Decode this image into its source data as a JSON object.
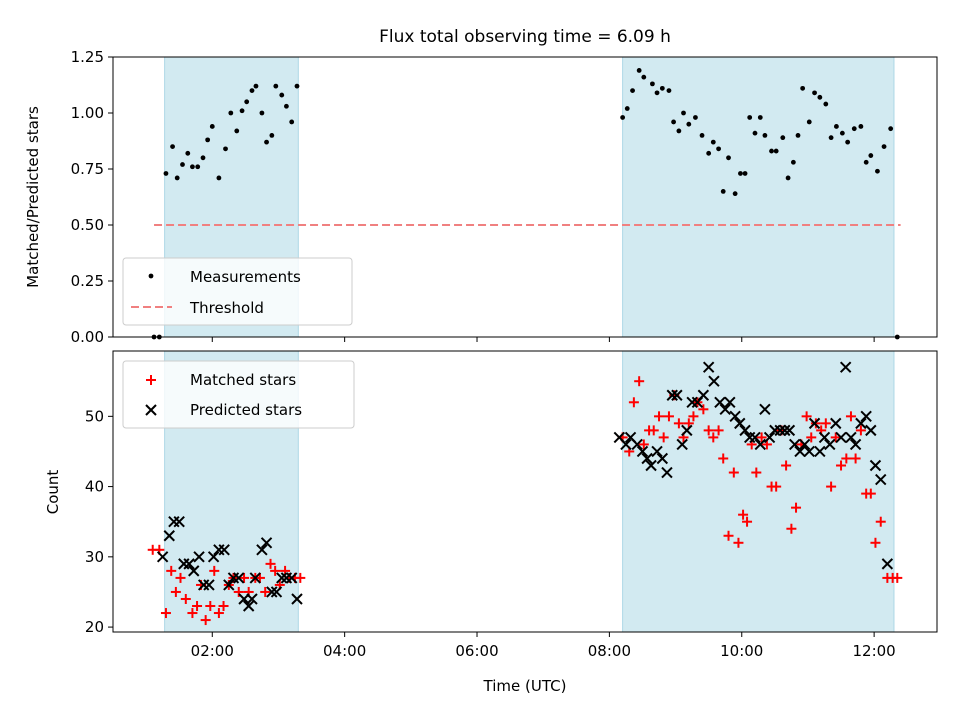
{
  "title": "Flux total observing time = 6.09 h",
  "colors": {
    "shade": "#add8e6",
    "measurement": "#000000",
    "threshold": "#f08080",
    "matched": "#ff0000",
    "predicted": "#000000"
  },
  "chart_data": [
    {
      "type": "scatter",
      "ylabel": "Matched/Predicted stars",
      "xlim": [
        0.5,
        12.95
      ],
      "ylim": [
        0,
        1.25
      ],
      "yticks": [
        0,
        0.25,
        0.5,
        0.75,
        1.0,
        1.25
      ],
      "ytick_labels": [
        "0.00",
        "0.25",
        "0.50",
        "0.75",
        "1.00",
        "1.25"
      ],
      "xticks": [
        2,
        4,
        6,
        8,
        10,
        12
      ],
      "shaded_intervals": [
        [
          1.28,
          3.3
        ],
        [
          8.2,
          12.3
        ]
      ],
      "threshold": {
        "value": 0.5,
        "x_range": [
          1.12,
          12.4
        ]
      },
      "legend": {
        "location": "lower-left",
        "entries": [
          "Measurements",
          "Threshold"
        ]
      },
      "series": [
        {
          "name": "Measurements",
          "marker": "dot",
          "points": [
            [
              1.12,
              0.0
            ],
            [
              1.2,
              0.0
            ],
            [
              1.3,
              0.73
            ],
            [
              1.4,
              0.85
            ],
            [
              1.47,
              0.71
            ],
            [
              1.55,
              0.77
            ],
            [
              1.63,
              0.82
            ],
            [
              1.7,
              0.76
            ],
            [
              1.78,
              0.76
            ],
            [
              1.86,
              0.8
            ],
            [
              1.93,
              0.88
            ],
            [
              2.0,
              0.94
            ],
            [
              2.1,
              0.71
            ],
            [
              2.2,
              0.84
            ],
            [
              2.28,
              1.0
            ],
            [
              2.37,
              0.92
            ],
            [
              2.45,
              1.01
            ],
            [
              2.52,
              1.05
            ],
            [
              2.6,
              1.1
            ],
            [
              2.66,
              1.12
            ],
            [
              2.75,
              1.0
            ],
            [
              2.82,
              0.87
            ],
            [
              2.9,
              0.9
            ],
            [
              2.96,
              1.12
            ],
            [
              3.05,
              1.08
            ],
            [
              3.12,
              1.03
            ],
            [
              3.2,
              0.96
            ],
            [
              3.28,
              1.12
            ],
            [
              8.2,
              0.98
            ],
            [
              8.27,
              1.02
            ],
            [
              8.35,
              1.1
            ],
            [
              8.45,
              1.19
            ],
            [
              8.52,
              1.16
            ],
            [
              8.65,
              1.13
            ],
            [
              8.72,
              1.09
            ],
            [
              8.8,
              1.11
            ],
            [
              8.9,
              1.1
            ],
            [
              8.97,
              0.96
            ],
            [
              9.05,
              0.92
            ],
            [
              9.12,
              1.0
            ],
            [
              9.2,
              0.95
            ],
            [
              9.3,
              0.98
            ],
            [
              9.4,
              0.9
            ],
            [
              9.5,
              0.82
            ],
            [
              9.57,
              0.87
            ],
            [
              9.65,
              0.84
            ],
            [
              9.72,
              0.65
            ],
            [
              9.8,
              0.8
            ],
            [
              9.9,
              0.64
            ],
            [
              9.98,
              0.73
            ],
            [
              10.05,
              0.73
            ],
            [
              10.12,
              0.98
            ],
            [
              10.2,
              0.91
            ],
            [
              10.28,
              0.98
            ],
            [
              10.35,
              0.9
            ],
            [
              10.45,
              0.83
            ],
            [
              10.52,
              0.83
            ],
            [
              10.62,
              0.89
            ],
            [
              10.7,
              0.71
            ],
            [
              10.78,
              0.78
            ],
            [
              10.85,
              0.9
            ],
            [
              10.92,
              1.11
            ],
            [
              11.02,
              0.96
            ],
            [
              11.1,
              1.09
            ],
            [
              11.18,
              1.07
            ],
            [
              11.27,
              1.04
            ],
            [
              11.35,
              0.89
            ],
            [
              11.43,
              0.94
            ],
            [
              11.52,
              0.91
            ],
            [
              11.6,
              0.87
            ],
            [
              11.7,
              0.93
            ],
            [
              11.8,
              0.94
            ],
            [
              11.88,
              0.78
            ],
            [
              11.95,
              0.81
            ],
            [
              12.05,
              0.74
            ],
            [
              12.15,
              0.85
            ],
            [
              12.25,
              0.93
            ],
            [
              12.35,
              0.0
            ]
          ]
        },
        {
          "name": "Threshold",
          "style": "dashed"
        }
      ]
    },
    {
      "type": "scatter",
      "xlabel": "Time (UTC)",
      "ylabel": "Count",
      "xlim": [
        0.5,
        12.95
      ],
      "ylim": [
        19.3,
        59.3
      ],
      "yticks": [
        20,
        30,
        40,
        50
      ],
      "ytick_labels": [
        "20",
        "30",
        "40",
        "50"
      ],
      "xticks": [
        2,
        4,
        6,
        8,
        10,
        12
      ],
      "xtick_labels": [
        "02:00",
        "04:00",
        "06:00",
        "08:00",
        "10:00",
        "12:00"
      ],
      "shaded_intervals": [
        [
          1.28,
          3.3
        ],
        [
          8.2,
          12.3
        ]
      ],
      "legend": {
        "location": "top-left",
        "entries": [
          "Matched stars",
          "Predicted stars"
        ]
      },
      "series": [
        {
          "name": "Matched stars",
          "marker": "plus",
          "points": [
            [
              1.1,
              31
            ],
            [
              1.2,
              31
            ],
            [
              1.3,
              22
            ],
            [
              1.38,
              28
            ],
            [
              1.45,
              25
            ],
            [
              1.52,
              27
            ],
            [
              1.6,
              24
            ],
            [
              1.7,
              22
            ],
            [
              1.77,
              23
            ],
            [
              1.83,
              26
            ],
            [
              1.9,
              21
            ],
            [
              1.97,
              23
            ],
            [
              2.03,
              28
            ],
            [
              2.1,
              22
            ],
            [
              2.17,
              23
            ],
            [
              2.25,
              26
            ],
            [
              2.32,
              27
            ],
            [
              2.4,
              25
            ],
            [
              2.48,
              27
            ],
            [
              2.55,
              25
            ],
            [
              2.65,
              27
            ],
            [
              2.72,
              27
            ],
            [
              2.8,
              25
            ],
            [
              2.88,
              29
            ],
            [
              2.95,
              28
            ],
            [
              3.02,
              26
            ],
            [
              3.1,
              28
            ],
            [
              3.17,
              27
            ],
            [
              3.25,
              27
            ],
            [
              3.33,
              27
            ],
            [
              8.2,
              47
            ],
            [
              8.3,
              45
            ],
            [
              8.37,
              52
            ],
            [
              8.45,
              55
            ],
            [
              8.52,
              46
            ],
            [
              8.6,
              48
            ],
            [
              8.67,
              48
            ],
            [
              8.75,
              50
            ],
            [
              8.82,
              47
            ],
            [
              8.9,
              50
            ],
            [
              8.98,
              53
            ],
            [
              9.05,
              49
            ],
            [
              9.12,
              47
            ],
            [
              9.2,
              49
            ],
            [
              9.27,
              50
            ],
            [
              9.33,
              52
            ],
            [
              9.42,
              51
            ],
            [
              9.5,
              48
            ],
            [
              9.57,
              47
            ],
            [
              9.65,
              48
            ],
            [
              9.72,
              44
            ],
            [
              9.8,
              33
            ],
            [
              9.88,
              42
            ],
            [
              9.95,
              32
            ],
            [
              10.02,
              36
            ],
            [
              10.08,
              35
            ],
            [
              10.15,
              46
            ],
            [
              10.22,
              42
            ],
            [
              10.3,
              47
            ],
            [
              10.38,
              46
            ],
            [
              10.45,
              40
            ],
            [
              10.52,
              40
            ],
            [
              10.6,
              48
            ],
            [
              10.67,
              43
            ],
            [
              10.75,
              34
            ],
            [
              10.82,
              37
            ],
            [
              10.9,
              46
            ],
            [
              10.98,
              50
            ],
            [
              11.05,
              47
            ],
            [
              11.12,
              49
            ],
            [
              11.2,
              48
            ],
            [
              11.27,
              49
            ],
            [
              11.35,
              40
            ],
            [
              11.42,
              47
            ],
            [
              11.5,
              43
            ],
            [
              11.58,
              44
            ],
            [
              11.65,
              50
            ],
            [
              11.72,
              44
            ],
            [
              11.8,
              48
            ],
            [
              11.88,
              39
            ],
            [
              11.95,
              39
            ],
            [
              12.02,
              32
            ],
            [
              12.1,
              35
            ],
            [
              12.2,
              27
            ],
            [
              12.28,
              27
            ],
            [
              12.35,
              27
            ]
          ]
        },
        {
          "name": "Predicted stars",
          "marker": "x",
          "points": [
            [
              1.25,
              30
            ],
            [
              1.35,
              33
            ],
            [
              1.42,
              35
            ],
            [
              1.5,
              35
            ],
            [
              1.57,
              29
            ],
            [
              1.65,
              29
            ],
            [
              1.72,
              28
            ],
            [
              1.8,
              30
            ],
            [
              1.87,
              26
            ],
            [
              1.95,
              26
            ],
            [
              2.02,
              30
            ],
            [
              2.1,
              31
            ],
            [
              2.18,
              31
            ],
            [
              2.25,
              26
            ],
            [
              2.32,
              27
            ],
            [
              2.4,
              27
            ],
            [
              2.48,
              24
            ],
            [
              2.55,
              23
            ],
            [
              2.6,
              24
            ],
            [
              2.65,
              27
            ],
            [
              2.75,
              31
            ],
            [
              2.82,
              32
            ],
            [
              2.9,
              25
            ],
            [
              2.97,
              25
            ],
            [
              3.05,
              27
            ],
            [
              3.12,
              27
            ],
            [
              3.2,
              27
            ],
            [
              3.28,
              24
            ],
            [
              8.15,
              47
            ],
            [
              8.25,
              46
            ],
            [
              8.32,
              47
            ],
            [
              8.42,
              46
            ],
            [
              8.5,
              45
            ],
            [
              8.57,
              44
            ],
            [
              8.63,
              43
            ],
            [
              8.72,
              45
            ],
            [
              8.8,
              44
            ],
            [
              8.87,
              42
            ],
            [
              8.95,
              53
            ],
            [
              9.02,
              53
            ],
            [
              9.1,
              46
            ],
            [
              9.17,
              48
            ],
            [
              9.25,
              52
            ],
            [
              9.33,
              52
            ],
            [
              9.42,
              53
            ],
            [
              9.5,
              57
            ],
            [
              9.58,
              55
            ],
            [
              9.67,
              52
            ],
            [
              9.75,
              51
            ],
            [
              9.82,
              52
            ],
            [
              9.9,
              50
            ],
            [
              9.97,
              49
            ],
            [
              10.05,
              48
            ],
            [
              10.12,
              47
            ],
            [
              10.2,
              47
            ],
            [
              10.28,
              46
            ],
            [
              10.35,
              51
            ],
            [
              10.42,
              47
            ],
            [
              10.5,
              48
            ],
            [
              10.58,
              48
            ],
            [
              10.65,
              48
            ],
            [
              10.72,
              48
            ],
            [
              10.8,
              46
            ],
            [
              10.88,
              45
            ],
            [
              10.95,
              46
            ],
            [
              11.02,
              45
            ],
            [
              11.1,
              49
            ],
            [
              11.18,
              45
            ],
            [
              11.25,
              47
            ],
            [
              11.33,
              46
            ],
            [
              11.42,
              49
            ],
            [
              11.5,
              47
            ],
            [
              11.57,
              57
            ],
            [
              11.65,
              47
            ],
            [
              11.72,
              46
            ],
            [
              11.8,
              49
            ],
            [
              11.88,
              50
            ],
            [
              11.95,
              48
            ],
            [
              12.02,
              43
            ],
            [
              12.1,
              41
            ],
            [
              12.2,
              29
            ]
          ]
        }
      ]
    }
  ]
}
